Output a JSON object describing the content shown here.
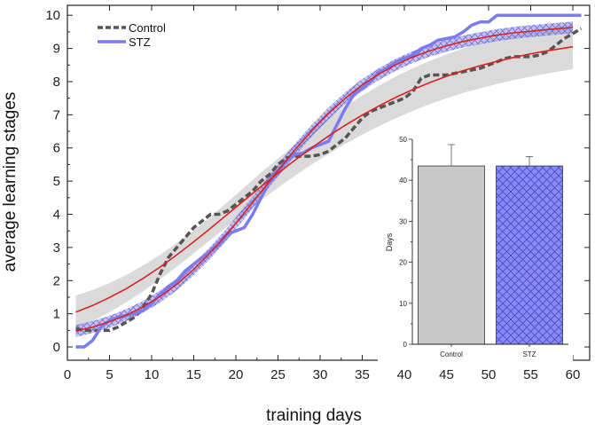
{
  "chart_data": [
    {
      "type": "line",
      "xlabel": "training days",
      "ylabel": "average learning stages",
      "xlim": [
        0,
        62
      ],
      "ylim": [
        -0.4,
        10.3
      ],
      "x_ticks": [
        0,
        5,
        10,
        15,
        20,
        25,
        30,
        35,
        40,
        45,
        50,
        55,
        60
      ],
      "y_ticks": [
        0,
        1,
        2,
        3,
        4,
        5,
        6,
        7,
        8,
        9,
        10
      ],
      "legend": {
        "position": "top-left",
        "entries": [
          "Control",
          "STZ"
        ]
      },
      "series": [
        {
          "name": "Control",
          "style": "dashed",
          "color": "#555555",
          "x": [
            1,
            2,
            3,
            4,
            5,
            6,
            7,
            8,
            9,
            10,
            11,
            12,
            13,
            14,
            15,
            16,
            17,
            18,
            19,
            20,
            21,
            22,
            23,
            24,
            25,
            26,
            27,
            28,
            29,
            30,
            31,
            32,
            33,
            34,
            35,
            36,
            37,
            38,
            39,
            40,
            41,
            42,
            43,
            44,
            45,
            46,
            47,
            48,
            49,
            50,
            51,
            52,
            53,
            54,
            55,
            56,
            57,
            58,
            59,
            60,
            61
          ],
          "values": [
            0.55,
            0.5,
            0.5,
            0.5,
            0.5,
            0.6,
            0.75,
            0.9,
            1.2,
            1.6,
            2.2,
            2.7,
            3.0,
            3.3,
            3.6,
            3.8,
            4.0,
            4.0,
            4.1,
            4.3,
            4.5,
            4.7,
            5.0,
            5.2,
            5.5,
            5.7,
            5.75,
            5.75,
            5.75,
            5.8,
            5.9,
            6.1,
            6.3,
            6.6,
            6.9,
            7.1,
            7.2,
            7.3,
            7.4,
            7.5,
            7.7,
            8.1,
            8.2,
            8.2,
            8.2,
            8.25,
            8.3,
            8.35,
            8.4,
            8.5,
            8.6,
            8.7,
            8.75,
            8.75,
            8.75,
            8.8,
            8.9,
            9.1,
            9.3,
            9.45,
            9.6
          ]
        },
        {
          "name": "STZ",
          "style": "solid",
          "color": "#7b7bf0",
          "x": [
            1,
            2,
            3,
            4,
            5,
            6,
            7,
            8,
            9,
            10,
            11,
            12,
            13,
            14,
            15,
            16,
            17,
            18,
            19,
            20,
            21,
            22,
            23,
            24,
            25,
            26,
            27,
            28,
            29,
            30,
            31,
            32,
            33,
            34,
            35,
            36,
            37,
            38,
            39,
            40,
            41,
            42,
            43,
            44,
            45,
            46,
            47,
            48,
            49,
            50,
            51,
            52,
            53,
            54,
            55,
            56,
            57,
            58,
            59,
            60,
            61
          ],
          "values": [
            0,
            0,
            0.2,
            0.6,
            0.8,
            0.9,
            0.95,
            1.0,
            1.1,
            1.3,
            1.6,
            1.8,
            2.0,
            2.3,
            2.5,
            2.7,
            2.9,
            3.1,
            3.4,
            3.5,
            3.6,
            4.0,
            4.5,
            5.0,
            5.3,
            5.6,
            5.8,
            5.85,
            6.0,
            6.1,
            6.2,
            6.7,
            7.2,
            7.6,
            7.8,
            8.0,
            8.3,
            8.4,
            8.6,
            8.7,
            8.8,
            9.0,
            9.1,
            9.25,
            9.3,
            9.35,
            9.5,
            9.7,
            9.8,
            9.8,
            10,
            10,
            10,
            10,
            10,
            10,
            10,
            10,
            10,
            10,
            10
          ]
        },
        {
          "name": "Control sigmoid fit",
          "style": "fit",
          "color": "#e02020",
          "band_color": "#d6d6d6",
          "x": [
            1,
            3,
            5,
            7,
            9,
            11,
            13,
            15,
            17,
            19,
            21,
            23,
            25,
            27,
            29,
            31,
            33,
            35,
            37,
            39,
            41,
            43,
            45,
            47,
            49,
            51,
            53,
            55,
            57,
            59,
            60
          ],
          "values": [
            1.05,
            1.25,
            1.49,
            1.76,
            2.07,
            2.41,
            2.78,
            3.17,
            3.58,
            4.0,
            4.42,
            4.84,
            5.24,
            5.63,
            6.0,
            6.36,
            6.69,
            6.99,
            7.27,
            7.53,
            7.76,
            7.97,
            8.16,
            8.33,
            8.48,
            8.61,
            8.73,
            8.84,
            8.93,
            9.01,
            9.05
          ],
          "lower": [
            0.55,
            0.78,
            1.05,
            1.35,
            1.68,
            2.04,
            2.42,
            2.82,
            3.23,
            3.63,
            4.03,
            4.42,
            4.8,
            5.16,
            5.5,
            5.82,
            6.12,
            6.4,
            6.66,
            6.9,
            7.12,
            7.32,
            7.5,
            7.66,
            7.8,
            7.93,
            8.05,
            8.15,
            8.25,
            8.33,
            8.37
          ],
          "upper": [
            1.55,
            1.72,
            1.93,
            2.17,
            2.46,
            2.78,
            3.14,
            3.52,
            3.93,
            4.37,
            4.81,
            5.26,
            5.68,
            6.1,
            6.5,
            6.9,
            7.26,
            7.58,
            7.88,
            8.16,
            8.4,
            8.62,
            8.82,
            9.0,
            9.16,
            9.29,
            9.41,
            9.53,
            9.61,
            9.69,
            9.73
          ]
        },
        {
          "name": "STZ sigmoid fit",
          "style": "fit",
          "color": "#e02020",
          "band_color": "#8f8fe8",
          "x": [
            1,
            3,
            5,
            7,
            9,
            11,
            13,
            15,
            17,
            19,
            21,
            23,
            25,
            27,
            29,
            31,
            33,
            35,
            37,
            39,
            41,
            43,
            45,
            47,
            49,
            51,
            53,
            55,
            57,
            59,
            60
          ],
          "values": [
            0.48,
            0.6,
            0.76,
            0.96,
            1.21,
            1.52,
            1.89,
            2.34,
            2.85,
            3.42,
            4.04,
            4.68,
            5.32,
            5.94,
            6.52,
            7.04,
            7.5,
            7.9,
            8.23,
            8.51,
            8.74,
            8.93,
            9.08,
            9.21,
            9.31,
            9.4,
            9.47,
            9.52,
            9.57,
            9.61,
            9.63
          ],
          "lower": [
            0.3,
            0.42,
            0.58,
            0.78,
            1.03,
            1.34,
            1.71,
            2.16,
            2.67,
            3.24,
            3.86,
            4.5,
            5.14,
            5.76,
            6.34,
            6.86,
            7.32,
            7.72,
            8.05,
            8.33,
            8.56,
            8.75,
            8.9,
            9.03,
            9.13,
            9.22,
            9.29,
            9.34,
            9.39,
            9.43,
            9.45
          ],
          "upper": [
            0.66,
            0.78,
            0.94,
            1.14,
            1.39,
            1.7,
            2.07,
            2.52,
            3.03,
            3.6,
            4.22,
            4.86,
            5.5,
            6.12,
            6.7,
            7.22,
            7.68,
            8.08,
            8.41,
            8.69,
            8.92,
            9.11,
            9.26,
            9.39,
            9.49,
            9.58,
            9.65,
            9.7,
            9.75,
            9.79,
            9.81
          ]
        }
      ]
    },
    {
      "type": "bar",
      "inset": true,
      "ylabel": "Days",
      "ylim": [
        0,
        50
      ],
      "y_ticks": [
        0,
        10,
        20,
        30,
        40,
        50
      ],
      "categories": [
        "Control",
        "STZ"
      ],
      "values": [
        43.5,
        43.5
      ],
      "error": [
        5.2,
        2.3
      ],
      "colors": [
        "#c8c8c8",
        "#8080f0"
      ]
    }
  ]
}
